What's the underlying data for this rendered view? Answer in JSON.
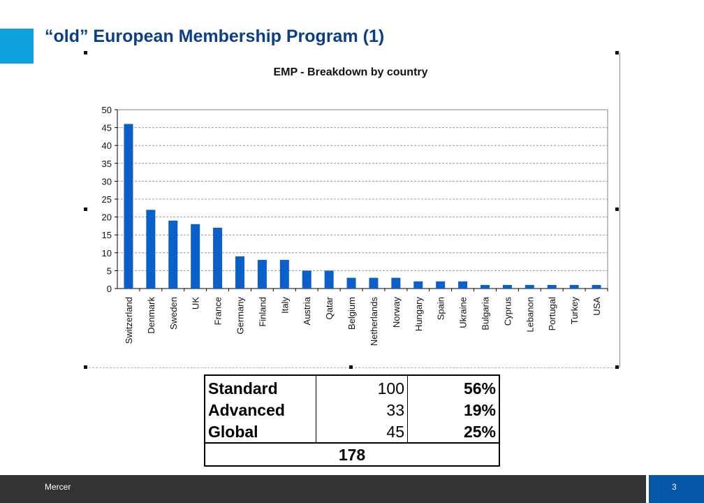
{
  "slide": {
    "title": "“old” European Membership Program (1)",
    "footer_text": "Mercer",
    "page_number": "3",
    "colors": {
      "accent": "#0ea1dc",
      "title": "#0b3e8a",
      "bar": "#0a5fc8",
      "footer": "#333333",
      "page_box": "#0757a8"
    }
  },
  "chart_data": {
    "type": "bar",
    "title": "EMP - Breakdown by country",
    "categories": [
      "Switzerland",
      "Denmark",
      "Sweden",
      "UK",
      "France",
      "Germany",
      "Finland",
      "Italy",
      "Austria",
      "Qatar",
      "Belgium",
      "Netherlands",
      "Norway",
      "Hungary",
      "Spain",
      "Ukraine",
      "Bulgaria",
      "Cyprus",
      "Lebanon",
      "Portugal",
      "Turkey",
      "USA"
    ],
    "values": [
      46,
      22,
      19,
      18,
      17,
      9,
      8,
      8,
      5,
      5,
      3,
      3,
      3,
      2,
      2,
      2,
      1,
      1,
      1,
      1,
      1,
      1
    ],
    "ylim": [
      0,
      50
    ],
    "yticks": [
      0,
      5,
      10,
      15,
      20,
      25,
      30,
      35,
      40,
      45,
      50
    ],
    "grid": true,
    "legend": false
  },
  "summary_table": {
    "rows": [
      {
        "category": "Standard",
        "count": "100",
        "percent": "56%"
      },
      {
        "category": "Advanced",
        "count": "33",
        "percent": "19%"
      },
      {
        "category": "Global",
        "count": "45",
        "percent": "25%"
      }
    ],
    "total": "178"
  }
}
